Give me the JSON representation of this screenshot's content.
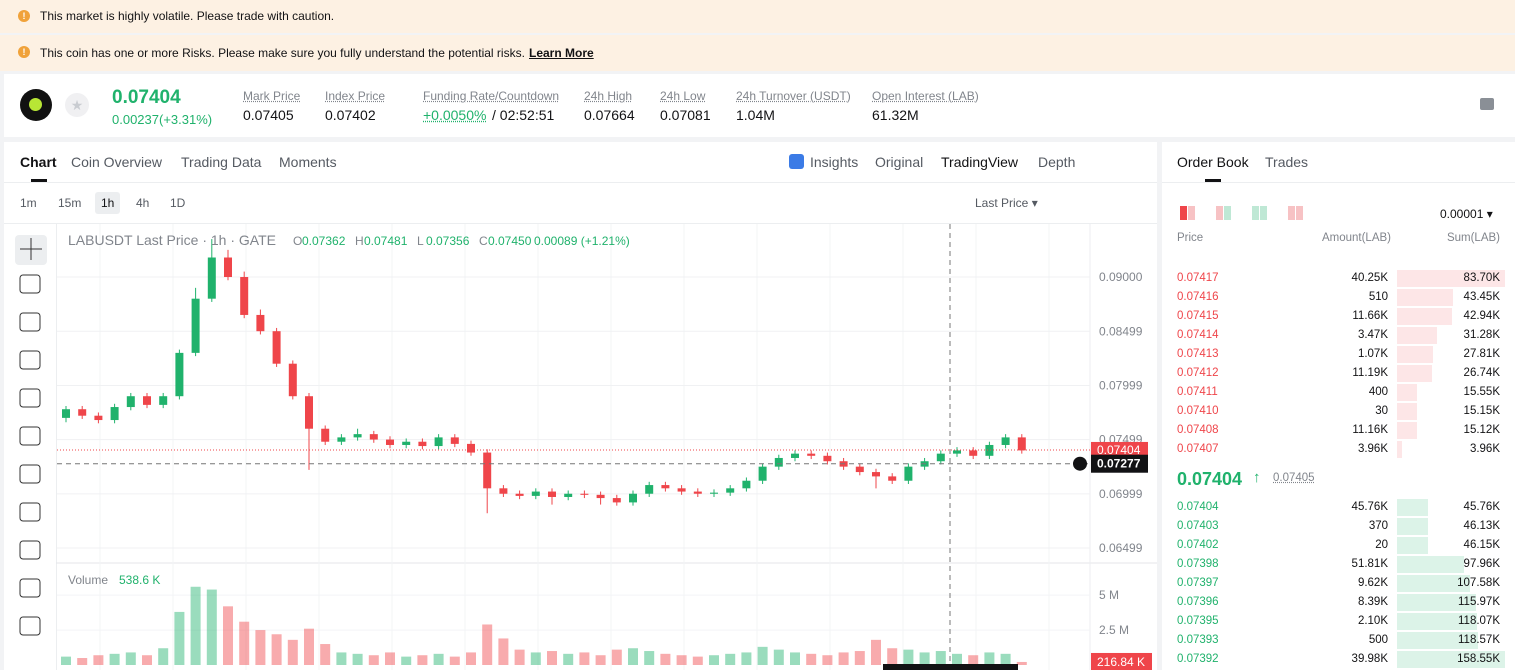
{
  "banners": [
    "This market is highly volatile. Please trade with caution.",
    "This coin has one or more Risks. Please make sure you fully understand the potential risks."
  ],
  "learn_more": "Learn More",
  "ticker": {
    "price": "0.07404",
    "change": "0.00237(+3.31%)",
    "stats": [
      {
        "label": "Mark Price",
        "value": "0.07405"
      },
      {
        "label": "Index Price",
        "value": "0.07402"
      },
      {
        "label": "Funding Rate/Countdown",
        "value": "+0.0050%",
        "extra": "/ 02:52:51"
      },
      {
        "label": "24h High",
        "value": "0.07664"
      },
      {
        "label": "24h Low",
        "value": "0.07081"
      },
      {
        "label": "24h Turnover (USDT)",
        "value": "1.04M"
      },
      {
        "label": "Open Interest (LAB)",
        "value": "61.32M"
      }
    ]
  },
  "tabs": [
    "Chart",
    "Coin Overview",
    "Trading Data",
    "Moments"
  ],
  "views": [
    "Insights",
    "Original",
    "TradingView",
    "Depth"
  ],
  "intervals": [
    "1m",
    "15m",
    "1h",
    "4h",
    "1D"
  ],
  "price_type": "Last Price",
  "chart_data": {
    "type": "candlestick",
    "title": "LABUSDT Last Price · 1h · GATE",
    "legend": [
      {
        "key": "O",
        "value": "0.07362"
      },
      {
        "key": "H",
        "value": "0.07481"
      },
      {
        "key": "L",
        "value": "0.07356"
      },
      {
        "key": "C",
        "value": "0.07450"
      }
    ],
    "change": "0.00089 (+1.21%)",
    "candles": [
      [
        0.077,
        0.0781,
        0.0766,
        0.0778
      ],
      [
        0.0778,
        0.0781,
        0.0769,
        0.0772
      ],
      [
        0.0772,
        0.0775,
        0.0765,
        0.0768
      ],
      [
        0.0768,
        0.0783,
        0.0765,
        0.078
      ],
      [
        0.078,
        0.0793,
        0.0777,
        0.079
      ],
      [
        0.079,
        0.0793,
        0.0779,
        0.0782
      ],
      [
        0.0782,
        0.0793,
        0.0779,
        0.079
      ],
      [
        0.079,
        0.0833,
        0.0787,
        0.083
      ],
      [
        0.083,
        0.089,
        0.0827,
        0.088
      ],
      [
        0.088,
        0.0935,
        0.0877,
        0.0918
      ],
      [
        0.0918,
        0.0925,
        0.0897,
        0.09
      ],
      [
        0.09,
        0.0905,
        0.0862,
        0.0865
      ],
      [
        0.0865,
        0.087,
        0.0847,
        0.085
      ],
      [
        0.085,
        0.0853,
        0.0817,
        0.082
      ],
      [
        0.082,
        0.0823,
        0.0787,
        0.079
      ],
      [
        0.079,
        0.0793,
        0.0722,
        0.076
      ],
      [
        0.076,
        0.0763,
        0.0745,
        0.0748
      ],
      [
        0.0748,
        0.0755,
        0.0745,
        0.0752
      ],
      [
        0.0752,
        0.076,
        0.0749,
        0.0755
      ],
      [
        0.0755,
        0.0758,
        0.0747,
        0.075
      ],
      [
        0.075,
        0.0753,
        0.0742,
        0.0745
      ],
      [
        0.0745,
        0.0751,
        0.0742,
        0.0748
      ],
      [
        0.0748,
        0.0751,
        0.0741,
        0.0744
      ],
      [
        0.0744,
        0.0755,
        0.0741,
        0.0752
      ],
      [
        0.0752,
        0.0755,
        0.0743,
        0.0746
      ],
      [
        0.0746,
        0.0749,
        0.0735,
        0.0738
      ],
      [
        0.0738,
        0.0741,
        0.0682,
        0.0705
      ],
      [
        0.0705,
        0.0708,
        0.0697,
        0.07
      ],
      [
        0.07,
        0.0703,
        0.0695,
        0.0698
      ],
      [
        0.0698,
        0.0705,
        0.0695,
        0.0702
      ],
      [
        0.0702,
        0.0705,
        0.069,
        0.0697
      ],
      [
        0.0697,
        0.0703,
        0.0694,
        0.07
      ],
      [
        0.07,
        0.0703,
        0.0696,
        0.0699
      ],
      [
        0.0699,
        0.0702,
        0.069,
        0.0696
      ],
      [
        0.0696,
        0.0699,
        0.0689,
        0.0692
      ],
      [
        0.0692,
        0.0703,
        0.0689,
        0.07
      ],
      [
        0.07,
        0.0711,
        0.0697,
        0.0708
      ],
      [
        0.0708,
        0.0711,
        0.0702,
        0.0705
      ],
      [
        0.0705,
        0.0708,
        0.0699,
        0.0702
      ],
      [
        0.0702,
        0.0705,
        0.0697,
        0.07
      ],
      [
        0.07,
        0.0704,
        0.0697,
        0.0701
      ],
      [
        0.0701,
        0.0708,
        0.0698,
        0.0705
      ],
      [
        0.0705,
        0.0715,
        0.0702,
        0.0712
      ],
      [
        0.0712,
        0.0728,
        0.0709,
        0.0725
      ],
      [
        0.0725,
        0.0736,
        0.0722,
        0.0733
      ],
      [
        0.0733,
        0.074,
        0.073,
        0.0737
      ],
      [
        0.0737,
        0.074,
        0.0732,
        0.0735
      ],
      [
        0.0735,
        0.0738,
        0.0727,
        0.073
      ],
      [
        0.073,
        0.0733,
        0.0722,
        0.0725
      ],
      [
        0.0725,
        0.0728,
        0.0717,
        0.072
      ],
      [
        0.072,
        0.0723,
        0.0705,
        0.0716
      ],
      [
        0.0716,
        0.0719,
        0.0709,
        0.0712
      ],
      [
        0.0712,
        0.0728,
        0.0709,
        0.0725
      ],
      [
        0.0725,
        0.0733,
        0.0722,
        0.073
      ],
      [
        0.073,
        0.074,
        0.0727,
        0.0737
      ],
      [
        0.0737,
        0.0743,
        0.0734,
        0.074
      ],
      [
        0.074,
        0.0743,
        0.0732,
        0.0735
      ],
      [
        0.0735,
        0.0748,
        0.0732,
        0.0745
      ],
      [
        0.0745,
        0.0755,
        0.0742,
        0.0752
      ],
      [
        0.0752,
        0.0755,
        0.0737,
        0.074
      ]
    ],
    "ylim": [
      0.0637,
      0.0948
    ],
    "yticks": [
      {
        "value": 0.09,
        "label": "0.09000"
      },
      0.08499,
      0.07999,
      0.07499,
      0.06999,
      0.06499
    ],
    "last_price": 0.07404,
    "crosshair_price": 0.07277,
    "volume_title": "Volume",
    "volume_label": "538.6 K",
    "volume": [
      600000,
      500000,
      700000,
      800000,
      900000,
      700000,
      1200000,
      3800000,
      5600000,
      5400000,
      4200000,
      3100000,
      2500000,
      2200000,
      1800000,
      2600000,
      1500000,
      900000,
      800000,
      700000,
      900000,
      600000,
      700000,
      800000,
      600000,
      900000,
      2900000,
      1900000,
      1100000,
      900000,
      1000000,
      800000,
      900000,
      700000,
      1100000,
      1200000,
      1000000,
      800000,
      700000,
      600000,
      700000,
      800000,
      900000,
      1300000,
      1100000,
      900000,
      800000,
      700000,
      900000,
      1000000,
      1800000,
      1200000,
      1100000,
      900000,
      1000000,
      800000,
      700000,
      900000,
      800000,
      216840
    ],
    "volume_value_labels": {
      "59": "216.84 K"
    },
    "vlim": [
      0,
      6800000
    ],
    "vticks": [
      {
        "value": 5000000,
        "label": "5 M"
      },
      {
        "value": 2500000,
        "label": "2.5 M"
      }
    ],
    "up_color": "#20b26c",
    "down_color": "#ef454a"
  },
  "order_book": {
    "tabs": [
      "Order Book",
      "Trades"
    ],
    "precision": "0.00001",
    "columns": [
      "Price",
      "Amount(LAB)",
      "Sum(LAB)"
    ],
    "asks": [
      [
        "0.07417",
        "40.25K",
        "83.70K"
      ],
      [
        "0.07416",
        "510",
        "43.45K"
      ],
      [
        "0.07415",
        "11.66K",
        "42.94K"
      ],
      [
        "0.07414",
        "3.47K",
        "31.28K"
      ],
      [
        "0.07413",
        "1.07K",
        "27.81K"
      ],
      [
        "0.07412",
        "11.19K",
        "26.74K"
      ],
      [
        "0.07411",
        "400",
        "15.55K"
      ],
      [
        "0.07410",
        "30",
        "15.15K"
      ],
      [
        "0.07408",
        "11.16K",
        "15.12K"
      ],
      [
        "0.07407",
        "3.96K",
        "3.96K"
      ]
    ],
    "mid_price": "0.07404",
    "mark_price": "0.07405",
    "bids": [
      [
        "0.07404",
        "45.76K",
        "45.76K"
      ],
      [
        "0.07403",
        "370",
        "46.13K"
      ],
      [
        "0.07402",
        "20",
        "46.15K"
      ],
      [
        "0.07398",
        "51.81K",
        "97.96K"
      ],
      [
        "0.07397",
        "9.62K",
        "107.58K"
      ],
      [
        "0.07396",
        "8.39K",
        "115.97K"
      ],
      [
        "0.07395",
        "2.10K",
        "118.07K"
      ],
      [
        "0.07393",
        "500",
        "118.57K"
      ],
      [
        "0.07392",
        "39.98K",
        "158.55K"
      ]
    ]
  }
}
